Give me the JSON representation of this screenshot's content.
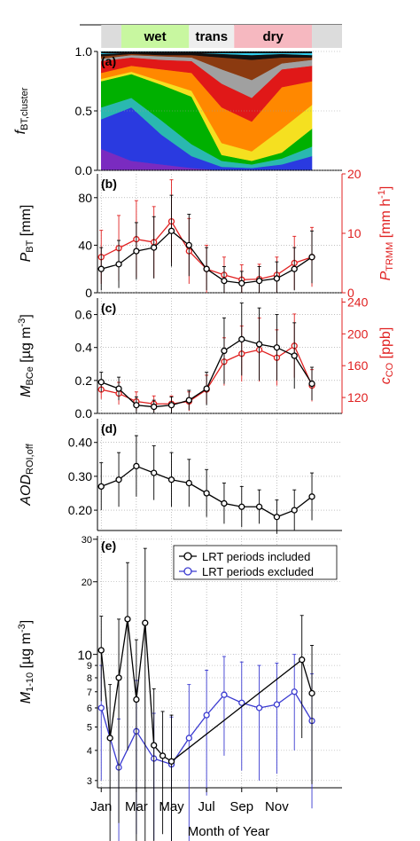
{
  "season_bar": {
    "seasons": [
      {
        "label": "",
        "from": 0,
        "to": 0.8,
        "color": "#dcdcdc"
      },
      {
        "label": "wet",
        "from": 0.8,
        "to": 3.5,
        "color": "#c8f7a0"
      },
      {
        "label": "trans",
        "from": 3.5,
        "to": 5.3,
        "color": "#eeeeee"
      },
      {
        "label": "dry",
        "from": 5.3,
        "to": 8.4,
        "color": "#f6b8c0"
      },
      {
        "label": "",
        "from": 8.4,
        "to": 9.6,
        "color": "#dcdcdc"
      }
    ]
  },
  "colors": {
    "black_series": "#000000",
    "red_series": "#e02020",
    "blue_series": "#3a3ad0",
    "grid": "#9a9a9a"
  },
  "x_axis": {
    "label": "Month of Year",
    "ticks": [
      "Jan",
      "Mar",
      "May",
      "Jul",
      "Sep",
      "Nov"
    ],
    "tick_values": [
      0,
      1.4,
      2.8,
      4.2,
      5.6,
      7.0
    ]
  },
  "chart_data": [
    {
      "panel": "(a)",
      "type": "area",
      "ylabel": "f_BT,cluster",
      "ylim": [
        0,
        1
      ],
      "yticks": [
        0.0,
        0.5,
        1.0
      ],
      "x_range": [
        0,
        8.4
      ],
      "stacked_series": [
        {
          "color": "#7a2bc0",
          "values": [
            0.18,
            0.08,
            0.05,
            0.02,
            0,
            0,
            0,
            0
          ]
        },
        {
          "color": "#2a3ae0",
          "values": [
            0.25,
            0.45,
            0.25,
            0.1,
            0.03,
            0.02,
            0.05,
            0.12
          ]
        },
        {
          "color": "#2ab8b0",
          "values": [
            0.1,
            0.08,
            0.12,
            0.1,
            0.05,
            0.03,
            0.05,
            0.08
          ]
        },
        {
          "color": "#00b000",
          "values": [
            0.22,
            0.2,
            0.3,
            0.4,
            0.05,
            0.03,
            0.05,
            0.15
          ]
        },
        {
          "color": "#f5e020",
          "values": [
            0.02,
            0.02,
            0.03,
            0.05,
            0.1,
            0.08,
            0.2,
            0.2
          ]
        },
        {
          "color": "#ff8800",
          "values": [
            0.05,
            0.05,
            0.1,
            0.15,
            0.3,
            0.25,
            0.35,
            0.2
          ]
        },
        {
          "color": "#e01818",
          "values": [
            0.1,
            0.07,
            0.08,
            0.1,
            0.2,
            0.2,
            0.15,
            0.13
          ]
        },
        {
          "color": "#a0a0a0",
          "values": [
            0.02,
            0.02,
            0.03,
            0.03,
            0.12,
            0.15,
            0.05,
            0.05
          ]
        },
        {
          "color": "#8b3a10",
          "values": [
            0.02,
            0.01,
            0.01,
            0.02,
            0.1,
            0.17,
            0.05,
            0.02
          ]
        },
        {
          "color": "#101010",
          "values": [
            0.02,
            0.01,
            0.02,
            0.02,
            0.03,
            0.04,
            0.03,
            0.02
          ]
        },
        {
          "color": "#30d0f0",
          "values": [
            0.02,
            0.01,
            0.01,
            0.01,
            0.02,
            0.03,
            0.02,
            0.03
          ]
        }
      ]
    },
    {
      "panel": "(b)",
      "type": "line",
      "ylabel": "P_BT [mm]",
      "ylim": [
        0,
        100
      ],
      "yticks": [
        0,
        40,
        80
      ],
      "y2label": "P_TRMM [mm h-1]",
      "y2lim": [
        0,
        20
      ],
      "y2ticks": [
        0,
        10,
        20
      ],
      "series": [
        {
          "name": "P_BT",
          "axis": "left",
          "x": [
            0,
            0.7,
            1.4,
            2.1,
            2.8,
            3.5,
            4.2,
            4.9,
            5.6,
            6.3,
            7.0,
            7.7,
            8.4
          ],
          "y": [
            20,
            24,
            35,
            38,
            52,
            40,
            20,
            10,
            8,
            10,
            12,
            20,
            30
          ],
          "err": [
            18,
            20,
            24,
            26,
            30,
            26,
            18,
            12,
            10,
            12,
            14,
            18,
            22
          ]
        },
        {
          "name": "P_TRMM",
          "axis": "right",
          "x": [
            0,
            0.7,
            1.4,
            2.1,
            2.8,
            3.5,
            4.2,
            4.9,
            5.6,
            6.3,
            7.0,
            7.7,
            8.4
          ],
          "y": [
            6,
            7.5,
            9,
            8.5,
            12,
            7,
            4,
            3,
            2.2,
            2.3,
            3,
            5,
            6
          ],
          "err": [
            4.5,
            5.5,
            6.5,
            6,
            7,
            5.5,
            4,
            3,
            2.5,
            2.5,
            3,
            4.5,
            5
          ]
        }
      ]
    },
    {
      "panel": "(c)",
      "type": "line",
      "ylabel": "M_BCe [µg m-3]",
      "ylim": [
        0,
        0.7
      ],
      "yticks": [
        0.0,
        0.2,
        0.4,
        0.6
      ],
      "y2label": "c_CO [ppb]",
      "y2lim": [
        100,
        245
      ],
      "y2ticks": [
        120,
        160,
        200,
        240
      ],
      "series": [
        {
          "name": "M_BCe",
          "axis": "left",
          "x": [
            0,
            0.7,
            1.4,
            2.1,
            2.8,
            3.5,
            4.2,
            4.9,
            5.6,
            6.3,
            7.0,
            7.7,
            8.4
          ],
          "y": [
            0.19,
            0.15,
            0.05,
            0.04,
            0.05,
            0.08,
            0.15,
            0.38,
            0.45,
            0.42,
            0.4,
            0.35,
            0.18
          ],
          "err": [
            0.06,
            0.07,
            0.05,
            0.04,
            0.05,
            0.06,
            0.1,
            0.2,
            0.22,
            0.22,
            0.2,
            0.2,
            0.1
          ]
        },
        {
          "name": "c_CO",
          "axis": "right",
          "x": [
            0,
            0.7,
            1.4,
            2.1,
            2.8,
            3.5,
            4.2,
            4.9,
            5.6,
            6.3,
            7.0,
            7.7,
            8.4
          ],
          "y": [
            130,
            125,
            115,
            112,
            112,
            115,
            130,
            165,
            175,
            180,
            170,
            185,
            135
          ],
          "err": [
            12,
            14,
            12,
            10,
            10,
            12,
            18,
            30,
            35,
            40,
            35,
            40,
            20
          ]
        }
      ]
    },
    {
      "panel": "(d)",
      "type": "line",
      "ylabel": "AOD_ROI,off",
      "ylim": [
        0.14,
        0.47
      ],
      "yticks": [
        0.2,
        0.3,
        0.4
      ],
      "series": [
        {
          "name": "AOD",
          "axis": "left",
          "x": [
            0,
            0.7,
            1.4,
            2.1,
            2.8,
            3.5,
            4.2,
            4.9,
            5.6,
            6.3,
            7.0,
            7.7,
            8.4
          ],
          "y": [
            0.27,
            0.29,
            0.33,
            0.31,
            0.29,
            0.28,
            0.25,
            0.22,
            0.21,
            0.21,
            0.18,
            0.2,
            0.24
          ],
          "err": [
            0.07,
            0.08,
            0.09,
            0.08,
            0.08,
            0.07,
            0.07,
            0.06,
            0.06,
            0.05,
            0.05,
            0.06,
            0.07
          ]
        }
      ]
    },
    {
      "panel": "(e)",
      "type": "line",
      "ylabel": "M_1-10 [µg m-3]",
      "yscale": "log",
      "ylim": [
        2.8,
        31
      ],
      "yticks": [
        3,
        4,
        5,
        6,
        7,
        8,
        9,
        10,
        20,
        30
      ],
      "legend_position": "top-right",
      "series": [
        {
          "name": "LRT periods included",
          "color_key": "black_series",
          "x": [
            0,
            0.35,
            0.7,
            1.05,
            1.4,
            1.75,
            2.1,
            2.45,
            2.8,
            8.0,
            8.4
          ],
          "y": [
            10.4,
            4.5,
            8.0,
            14.0,
            6.5,
            13.5,
            4.2,
            3.8,
            3.6,
            9.5,
            6.9
          ],
          "err": [
            4,
            3,
            6,
            10,
            5,
            14,
            3,
            2,
            2,
            5,
            4
          ]
        },
        {
          "name": "LRT periods excluded",
          "color_key": "blue_series",
          "x": [
            0,
            0.7,
            1.4,
            2.1,
            2.8,
            3.5,
            4.2,
            4.9,
            5.6,
            6.3,
            7.0,
            7.7,
            8.4
          ],
          "y": [
            6.0,
            3.4,
            4.8,
            3.7,
            3.5,
            4.5,
            5.6,
            6.8,
            6.3,
            6.0,
            6.2,
            7.0,
            5.3
          ],
          "err": [
            3,
            2,
            3,
            2,
            2,
            3,
            3,
            3,
            3,
            3,
            3,
            3,
            3
          ]
        }
      ]
    }
  ]
}
